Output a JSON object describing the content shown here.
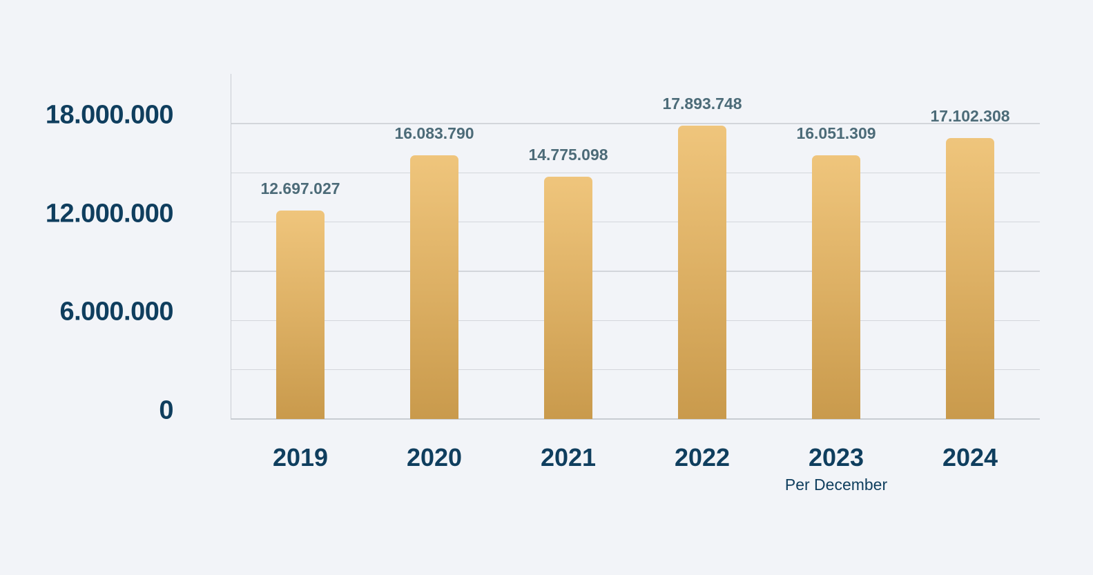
{
  "chart_data": {
    "type": "bar",
    "title": "",
    "xlabel": "",
    "ylabel": "",
    "categories": [
      "2019",
      "2020",
      "2021",
      "2022",
      "2023",
      "2024"
    ],
    "category_notes": [
      "",
      "",
      "",
      "",
      "Per December",
      ""
    ],
    "values": [
      12697027,
      16083790,
      14775098,
      17893748,
      16051309,
      17102308
    ],
    "value_labels": [
      "12.697.027",
      "16.083.790",
      "14.775.098",
      "17.893.748",
      "16.051.309",
      "17.102.308"
    ],
    "y_ticks": [
      0,
      6000000,
      12000000,
      18000000
    ],
    "y_tick_labels": [
      "0",
      "6.000.000",
      "12.000.000",
      "18.000.000"
    ],
    "gridlines_every": 3000000,
    "ylim": [
      0,
      21000000
    ],
    "grid": true,
    "legend": null,
    "colors": {
      "bar_top": "#efc57c",
      "bar_bottom": "#c99a4c",
      "axis_text": "#0f3e5e",
      "value_text": "#4c6b78",
      "background": "#f2f4f8"
    }
  }
}
